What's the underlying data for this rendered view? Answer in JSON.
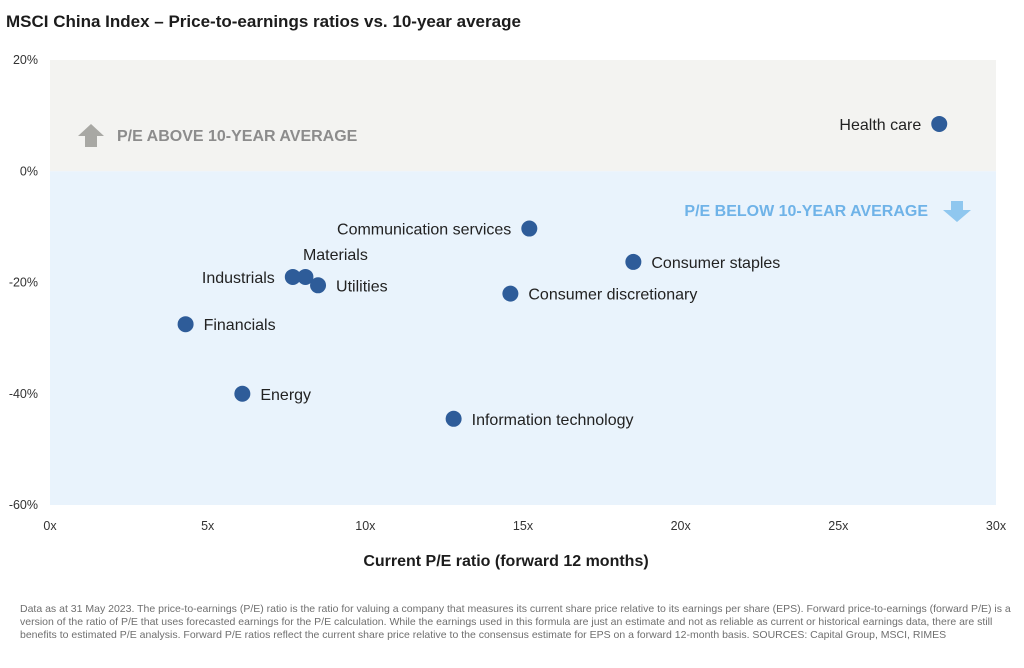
{
  "title": "MSCI China Index – Price-to-earnings ratios vs. 10-year average",
  "footnote": "Data as at 31 May 2023. The price-to-earnings (P/E) ratio is the ratio for valuing a company that measures its current share price relative to its earnings per share (EPS). Forward price-to-earnings (forward P/E) is a version of the ratio of P/E that uses forecasted earnings for the P/E calculation. While the earnings used in this formula are just an estimate and not as reliable as current or historical earnings data, there are still benefits to estimated P/E analysis. Forward P/E ratios reflect the current share price relative to the consensus estimate for EPS on a forward 12-month basis. SOURCES: Capital Group, MSCI, RIMES",
  "colors": {
    "above_zone": "#f3f3f1",
    "below_zone": "#e9f3fc",
    "point": "#2e5c99",
    "above_text": "#8c8c8c",
    "below_text": "#6fb3e8"
  },
  "chart_data": {
    "type": "scatter",
    "xlabel": "Current P/E ratio (forward 12 months)",
    "ylabel": "",
    "xlim": [
      0,
      30
    ],
    "ylim": [
      -60,
      20
    ],
    "xticks": [
      0,
      5,
      10,
      15,
      20,
      25,
      30
    ],
    "xtick_labels": [
      "0x",
      "5x",
      "10x",
      "15x",
      "20x",
      "25x",
      "30x"
    ],
    "yticks": [
      20,
      0,
      -20,
      -40,
      -60
    ],
    "ytick_labels": [
      "20%",
      "0%",
      "-20%",
      "-40%",
      "-60%"
    ],
    "annotations": {
      "above": "P/E ABOVE 10-YEAR AVERAGE",
      "below": "P/E BELOW 10-YEAR AVERAGE"
    },
    "points": [
      {
        "label": "Health care",
        "x": 28.2,
        "y": 8.5,
        "pos": "left"
      },
      {
        "label": "Communication services",
        "x": 15.2,
        "y": -10.3,
        "pos": "left"
      },
      {
        "label": "Consumer staples",
        "x": 18.5,
        "y": -16.3,
        "pos": "right"
      },
      {
        "label": "Materials",
        "x": 8.1,
        "y": -19.0,
        "pos": "above"
      },
      {
        "label": "Industrials",
        "x": 7.7,
        "y": -19.0,
        "pos": "left"
      },
      {
        "label": "Utilities",
        "x": 8.5,
        "y": -20.5,
        "pos": "right"
      },
      {
        "label": "Consumer discretionary",
        "x": 14.6,
        "y": -22.0,
        "pos": "right"
      },
      {
        "label": "Financials",
        "x": 4.3,
        "y": -27.5,
        "pos": "right"
      },
      {
        "label": "Energy",
        "x": 6.1,
        "y": -40.0,
        "pos": "right"
      },
      {
        "label": "Information technology",
        "x": 12.8,
        "y": -44.5,
        "pos": "right"
      }
    ]
  }
}
